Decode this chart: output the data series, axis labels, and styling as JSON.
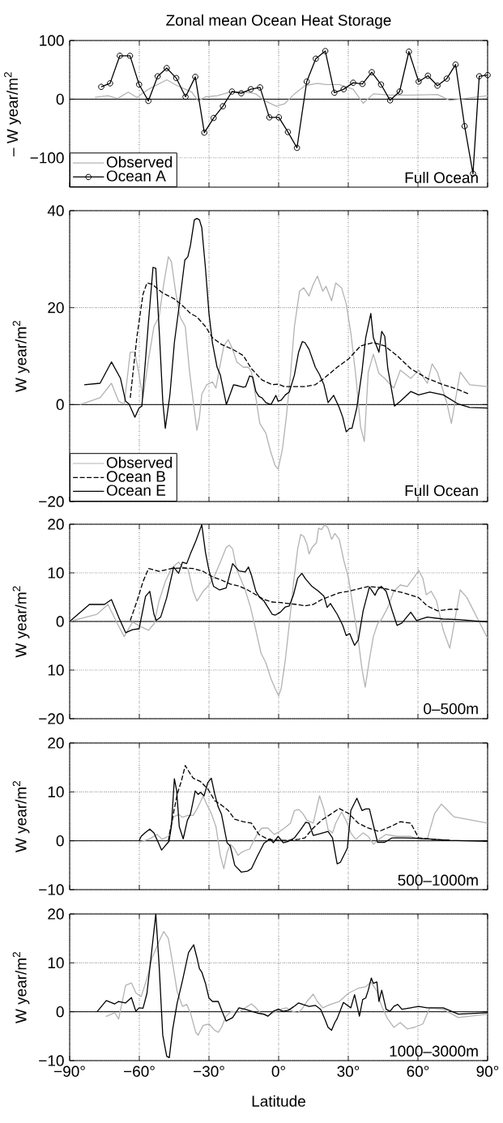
{
  "chart_data": [
    {
      "type": "line",
      "title": "Zonal  mean Ocean Heat Storage",
      "ylabel": "– W year/m$^{2}$",
      "xlim": [
        -90,
        90
      ],
      "ylim": [
        -150,
        100
      ],
      "xticks": [
        {
          "value": -90,
          "label": null
        },
        {
          "value": -60,
          "label": null
        },
        {
          "value": -30,
          "label": null
        },
        {
          "value": 0,
          "label": null
        },
        {
          "value": 30,
          "label": null
        },
        {
          "value": 60,
          "label": null
        },
        {
          "value": 90,
          "label": null
        }
      ],
      "yticks": [
        {
          "value": -100,
          "label": "−100"
        },
        0,
        100
      ],
      "tick_labels": "y",
      "grid": true,
      "legend": "bottom left",
      "ref_lines": [
        {
          "axis": "y",
          "value": 0,
          "color": "#000000"
        }
      ],
      "annotations": [
        "Full Ocean"
      ],
      "series": [
        {
          "name": "Observed",
          "color": "#b3b3b3",
          "x": [
            -79.1,
            -73.5,
            -69.4,
            -64.8,
            -61.0,
            -56.0,
            -48.2,
            -43.7,
            -40.2,
            -37.4,
            -34.7,
            -31.5,
            -26.5,
            -20.8,
            -15.2,
            -9.8,
            -6.3,
            -1.0,
            2.5,
            6.8,
            11.3,
            16.7,
            20.4,
            26.1,
            32.1,
            36.4,
            40.8,
            48.2,
            56.9,
            68.4,
            73.7,
            90
          ],
          "values": [
            3,
            6,
            1,
            12,
            3,
            17,
            33,
            23,
            17,
            12,
            -3,
            4,
            6,
            12,
            13,
            9,
            -2,
            -12,
            -8,
            9,
            23,
            27,
            25,
            25,
            17,
            -7,
            9,
            7,
            7,
            8,
            -2,
            6
          ]
        },
        {
          "name": "Ocean A",
          "color": "#000000",
          "marker": "circle",
          "x": [
            -76.4,
            -72.6,
            -68.4,
            -64.0,
            -60.1,
            -56.1,
            -52.1,
            -48.2,
            -44.1,
            -40.1,
            -35.9,
            -32.0,
            -28.0,
            -24.0,
            -20.1,
            -16.1,
            -12.0,
            -8.0,
            -4.0,
            0.1,
            4.0,
            7.9,
            12.1,
            16.0,
            20.1,
            24.0,
            28.0,
            32.1,
            36.1,
            40.1,
            44.1,
            48.0,
            52.1,
            56.1,
            60.3,
            64.3,
            68.4,
            72.4,
            76.2,
            80.1,
            83.7,
            86.4,
            90
          ],
          "values": [
            21,
            27,
            74,
            74,
            25,
            -3,
            39,
            53,
            36,
            4,
            38,
            -57,
            -32,
            -12,
            13,
            10,
            17,
            20,
            -31,
            -31,
            -56,
            -83,
            30,
            69,
            82,
            11,
            17,
            28,
            26,
            46,
            25,
            -2,
            13,
            81,
            30,
            40,
            23,
            35,
            59,
            -46,
            -127,
            39,
            41
          ]
        }
      ]
    },
    {
      "type": "line",
      "ylabel": "W year/m$^{2}$",
      "xlim": [
        -90,
        90
      ],
      "ylim": [
        -20,
        40
      ],
      "xticks": [
        {
          "value": -90,
          "label": null
        },
        {
          "value": -60,
          "label": null
        },
        {
          "value": -30,
          "label": null
        },
        {
          "value": 0,
          "label": null
        },
        {
          "value": 30,
          "label": null
        },
        {
          "value": 60,
          "label": null
        },
        {
          "value": 90,
          "label": null
        }
      ],
      "yticks": [
        {
          "value": -20,
          "label": "−20"
        },
        0,
        20,
        40
      ],
      "tick_labels": "y",
      "grid": true,
      "legend": "bottom left",
      "ref_lines": [
        {
          "axis": "y",
          "value": 0,
          "color": "#000000"
        }
      ],
      "annotations": [
        "Full Ocean"
      ],
      "series": [
        {
          "name": "Observed",
          "color": "#b3b3b3",
          "x": [
            -85.6,
            -76.9,
            -72.0,
            -68.9,
            -66.5,
            -63.9,
            -61.9,
            -60.1,
            -58.4,
            -56.0,
            -53.7,
            -51.5,
            -49.5,
            -47.5,
            -46.2,
            -44.4,
            -42.5,
            -40.2,
            -38.5,
            -36.8,
            -35.2,
            -34.1,
            -33.1,
            -31.0,
            -28.5,
            -27.0,
            -25.5,
            -23.6,
            -21.7,
            -19.8,
            -18.0,
            -15.2,
            -13.0,
            -11.7,
            -9.8,
            -8.1,
            -5.5,
            -3.7,
            -1.5,
            -0.2,
            1.6,
            3.3,
            5.1,
            6.8,
            9.0,
            10.8,
            13.1,
            14.9,
            16.7,
            19.0,
            20.4,
            22.8,
            24.6,
            27.1,
            29.1,
            31.1,
            33.2,
            35.3,
            36.9,
            38.6,
            40.8,
            43.2,
            45.7,
            49.6,
            52.4,
            56.9,
            60.3,
            64.0,
            66.1,
            68.4,
            72.4,
            74.4,
            78.2,
            82.3,
            90
          ],
          "values": [
            0,
            1.4,
            4.4,
            0.7,
            0.1,
            10.8,
            10.8,
            6.1,
            1.4,
            9.4,
            16.1,
            18.1,
            24.8,
            30.5,
            29.5,
            23.4,
            18.1,
            16.1,
            7.4,
            0.7,
            -5.3,
            -2.6,
            2.1,
            4.1,
            4.7,
            3.4,
            7.4,
            12.1,
            13.4,
            11.4,
            8.8,
            7.7,
            7.7,
            6.7,
            1.4,
            -3.9,
            -5.9,
            -9.3,
            -12.6,
            -13.3,
            -9.3,
            -2.6,
            6.1,
            16.1,
            23.4,
            24.1,
            22.4,
            24.8,
            26.5,
            23.4,
            24.4,
            21.4,
            25.1,
            24.1,
            20.8,
            14.8,
            6.1,
            -4.6,
            -7.6,
            6.7,
            10.4,
            6.4,
            5.4,
            3.4,
            7.1,
            5.4,
            7.1,
            4.4,
            8.4,
            6.7,
            0.4,
            -3.9,
            6.7,
            4.1,
            3.7
          ]
        },
        {
          "name": "Ocean B",
          "color": "#000000",
          "line_style": "dashed",
          "x": [
            -63.9,
            -61.0,
            -58.4,
            -56.7,
            -54.4,
            -50.2,
            -44.9,
            -41.4,
            -38.0,
            -35.2,
            -31.5,
            -28.5,
            -24.6,
            -19.8,
            -15.2,
            -11.7,
            -7.2,
            -2.8,
            -0.2,
            2.5,
            6.8,
            11.3,
            15.8,
            19.5,
            25.2,
            30.1,
            35.3,
            40.8,
            45.7,
            51.0,
            56.9,
            64.0,
            70.9,
            77.4,
            82.3
          ],
          "values": [
            1.4,
            14.1,
            22.8,
            25.1,
            24.8,
            23.1,
            21.8,
            20.4,
            18.8,
            18.1,
            16.1,
            13.8,
            12.4,
            11.4,
            10.1,
            7.4,
            5.1,
            4.1,
            4.2,
            3.7,
            3.7,
            3.7,
            4.1,
            5.4,
            7.7,
            9.4,
            12.1,
            12.8,
            12.1,
            10.1,
            7.4,
            5.4,
            4.1,
            3.1,
            2.1
          ]
        },
        {
          "name": "Ocean E",
          "color": "#000000",
          "x": [
            -83.7,
            -76.9,
            -72.0,
            -68.1,
            -65.9,
            -64.4,
            -61.9,
            -60.1,
            -58.9,
            -56.0,
            -54.1,
            -52.9,
            -51.3,
            -49.9,
            -48.8,
            -46.8,
            -44.9,
            -43.1,
            -40.4,
            -39.1,
            -38.0,
            -36.3,
            -35.2,
            -34.1,
            -33.1,
            -31.5,
            -30,
            -28.5,
            -26.5,
            -25.1,
            -22.5,
            -19.4,
            -17.5,
            -15.2,
            -14.2,
            -12.5,
            -11.2,
            -9.8,
            -8.5,
            -7.2,
            -5.5,
            -3.3,
            -1.2,
            -0.2,
            1.1,
            2.9,
            4.6,
            6.8,
            8.6,
            10.2,
            11.3,
            13.1,
            15.8,
            17.6,
            19.5,
            21.3,
            23.7,
            26.1,
            27.6,
            29.1,
            30.6,
            31.6,
            33.7,
            35.9,
            37.5,
            39.7,
            40.8,
            43.2,
            44.4,
            45.7,
            47.0,
            49.9,
            52.4,
            56.9,
            60.3,
            65.1,
            70.9,
            77.4,
            82.3,
            90
          ],
          "values": [
            4.1,
            4.4,
            8.8,
            5.4,
            0.7,
            0.1,
            -2.6,
            -0.7,
            -0.3,
            17.4,
            28.3,
            28.1,
            14.1,
            0.7,
            -4.9,
            2.1,
            12.8,
            19.4,
            29.8,
            30.5,
            32.8,
            38.1,
            38.4,
            38.1,
            36.5,
            28.1,
            18.8,
            12.7,
            7.7,
            6.1,
            0,
            4.1,
            3.9,
            3.6,
            3.7,
            5.9,
            5.7,
            2.7,
            1.7,
            1.4,
            0.4,
            0,
            1.9,
            0.7,
            0.9,
            2.0,
            2.6,
            6.1,
            10.8,
            13.0,
            12.8,
            11.4,
            7.7,
            6.2,
            4.1,
            0.4,
            1.9,
            -0.6,
            -2.6,
            -5.6,
            -4.9,
            -4.9,
            -0.6,
            6.8,
            13.8,
            18.8,
            13.8,
            10.8,
            15.1,
            14.1,
            7.5,
            -0.3,
            0.7,
            2.7,
            2.0,
            2.6,
            2.0,
            0.1,
            -0.6,
            -0.7
          ]
        }
      ]
    },
    {
      "type": "line",
      "ylabel": "W year/m$^{2}$",
      "xlim": [
        -90,
        90
      ],
      "ylim": [
        -20,
        20
      ],
      "xticks": [
        {
          "value": -90,
          "label": null
        },
        {
          "value": -60,
          "label": null
        },
        {
          "value": -30,
          "label": null
        },
        {
          "value": 0,
          "label": null
        },
        {
          "value": 30,
          "label": null
        },
        {
          "value": 60,
          "label": null
        },
        {
          "value": 90,
          "label": null
        }
      ],
      "yticks": [
        {
          "value": -20,
          "label": "−20"
        },
        {
          "value": -10,
          "label": "10"
        },
        0,
        10,
        20
      ],
      "tick_labels": "y",
      "grid": true,
      "ref_lines": [
        {
          "axis": "y",
          "value": 0,
          "color": "#000000"
        }
      ],
      "annotations": [
        "0–500m"
      ],
      "series": [
        {
          "color": "#b3b3b3",
          "x": [
            -90,
            -78.2,
            -73.5,
            -69.4,
            -66.5,
            -62.9,
            -59.2,
            -56.0,
            -53.7,
            -51.5,
            -48.8,
            -46.2,
            -43.1,
            -41.4,
            -39.1,
            -36.8,
            -35.2,
            -32.5,
            -30,
            -27.5,
            -25.1,
            -22.6,
            -21.2,
            -19.8,
            -18.0,
            -16.1,
            -14.4,
            -12.1,
            -9.8,
            -7.6,
            -5.5,
            -3.3,
            -1.5,
            0,
            1.1,
            2.9,
            4.6,
            6.4,
            8.2,
            9.5,
            10.8,
            12.2,
            13.1,
            14.4,
            16.3,
            17.2,
            18.5,
            19.9,
            21.3,
            22.8,
            24.2,
            26.1,
            28.1,
            30.1,
            32.1,
            34.3,
            35.9,
            37.3,
            39.1,
            40.8,
            42.6,
            44.4,
            47.0,
            49.6,
            52.4,
            55.4,
            58.5,
            60.3,
            62.1,
            63.6,
            65.7,
            68.0,
            70.9,
            73.7,
            78.2,
            81.1,
            90
          ],
          "values": [
            0,
            1.5,
            3.5,
            -0.5,
            -3.1,
            -0.1,
            -1.1,
            -1.8,
            -0.5,
            4.2,
            8.2,
            10.9,
            12.2,
            11.2,
            10.9,
            6.2,
            4.2,
            6.2,
            7.5,
            9.5,
            12.2,
            15.2,
            15.7,
            14.9,
            10.6,
            8.5,
            6.5,
            2.9,
            -1.8,
            -6.5,
            -8.5,
            -11.8,
            -13.8,
            -15.3,
            -13.8,
            -7.8,
            -0.5,
            7.9,
            14.9,
            17.9,
            17.5,
            15.9,
            13.9,
            15.2,
            16.2,
            19.2,
            18.9,
            19.9,
            19.2,
            16.9,
            18.1,
            16.9,
            12.5,
            8.9,
            2.9,
            -3.8,
            -9.8,
            -13.5,
            -7.8,
            -3.1,
            -0.5,
            0.5,
            2.9,
            6.2,
            7.5,
            7.2,
            9.2,
            10.5,
            8.9,
            5.5,
            6.2,
            4.2,
            -1.8,
            -5.5,
            6.5,
            4.9,
            -3.5
          ]
        },
        {
          "color": "#000000",
          "line_style": "dashed",
          "x": [
            -63.9,
            -61.0,
            -58.4,
            -56.0,
            -51.5,
            -46.2,
            -41.4,
            -36.8,
            -32.5,
            -28.5,
            -24.6,
            -20.8,
            -17.1,
            -13.4,
            -9.8,
            -6.3,
            -2.8,
            0.7,
            4.2,
            7.8,
            11.3,
            14.9,
            18.5,
            22.3,
            26.1,
            30.1,
            34.3,
            38.6,
            43.2,
            48.2,
            53.8,
            60.3,
            64.0,
            68.4,
            73.7,
            77.4
          ],
          "values": [
            0.2,
            4.2,
            8.2,
            10.9,
            10.3,
            10.9,
            11.0,
            10.9,
            10.3,
            9.2,
            8.5,
            7.7,
            7.3,
            6.5,
            5.5,
            4.5,
            4.0,
            3.9,
            3.7,
            3.5,
            3.2,
            3.5,
            4.5,
            5.2,
            5.9,
            6.2,
            6.7,
            7.2,
            7.0,
            6.5,
            5.9,
            4.9,
            3.2,
            2.2,
            2.5,
            2.5
          ]
        },
        {
          "color": "#000000",
          "x": [
            -90,
            -81.5,
            -75.0,
            -72.0,
            -68.9,
            -65.9,
            -62.9,
            -60.1,
            -57.3,
            -55.5,
            -53.7,
            -52.7,
            -50.8,
            -48.2,
            -45.2,
            -43.1,
            -41.4,
            -39.6,
            -38.0,
            -35.7,
            -33.1,
            -31.5,
            -30,
            -28.0,
            -25.5,
            -22.6,
            -19.8,
            -17.1,
            -14.4,
            -13.0,
            -11.7,
            -9.8,
            -8.1,
            -6.3,
            -4.6,
            -2.8,
            -1.5,
            0.7,
            2.9,
            4.6,
            6.4,
            8.2,
            10.0,
            11.7,
            14.4,
            17.2,
            19.5,
            20.9,
            22.3,
            25.2,
            27.6,
            29.1,
            30.6,
            32.7,
            34.3,
            36.4,
            39.1,
            41.5,
            42.6,
            44.2,
            46.3,
            48.9,
            51.0,
            53.1,
            56.9,
            59.4,
            64.0,
            70.9,
            77.4,
            90
          ],
          "values": [
            0,
            3.5,
            3.5,
            4.5,
            0.9,
            -2.3,
            -1.7,
            -1.5,
            5.2,
            6.2,
            1.5,
            0.2,
            0.9,
            4.9,
            11.2,
            9.9,
            12.2,
            11.9,
            13.9,
            16.5,
            19.9,
            14.2,
            10.5,
            7.2,
            6.5,
            6.9,
            11.9,
            10.4,
            10.2,
            11.2,
            9.5,
            6.2,
            4.9,
            4.2,
            2.9,
            1.5,
            1.3,
            1.9,
            3.0,
            3.2,
            5.5,
            8.9,
            9.9,
            8.7,
            7.2,
            6.2,
            5.2,
            2.9,
            3.7,
            1.5,
            -0.8,
            -2.9,
            -2.5,
            -4.9,
            -3.8,
            2.2,
            7.1,
            5.4,
            6.5,
            7.2,
            6.2,
            2.2,
            -0.8,
            -0.3,
            1.9,
            0.2,
            0.9,
            0.5,
            0.4,
            -0.1
          ]
        }
      ]
    },
    {
      "type": "line",
      "ylabel": "W year/m$^{2}$",
      "xlim": [
        -90,
        90
      ],
      "ylim": [
        -10,
        20
      ],
      "xticks": [
        {
          "value": -90,
          "label": null
        },
        {
          "value": -60,
          "label": null
        },
        {
          "value": -30,
          "label": null
        },
        {
          "value": 0,
          "label": null
        },
        {
          "value": 30,
          "label": null
        },
        {
          "value": 60,
          "label": null
        },
        {
          "value": 90,
          "label": null
        }
      ],
      "yticks": [
        {
          "value": -10,
          "label": "−10"
        },
        0,
        10,
        20
      ],
      "tick_labels": "y",
      "grid": true,
      "ref_lines": [
        {
          "axis": "y",
          "value": 0,
          "color": "#000000"
        }
      ],
      "annotations": [
        "500–1000m"
      ],
      "series": [
        {
          "color": "#b3b3b3",
          "x": [
            -60.1,
            -56.0,
            -52.3,
            -50.2,
            -47.5,
            -45.2,
            -43.1,
            -41.4,
            -39.1,
            -36.8,
            -34.7,
            -32.5,
            -31.0,
            -29.0,
            -27.0,
            -25.1,
            -23.6,
            -22.2,
            -20.8,
            -18.9,
            -17.5,
            -16.1,
            -14.4,
            -12.5,
            -10.8,
            -9.0,
            -7.2,
            -4.6,
            -1.9,
            -0.2,
            2.5,
            5.1,
            6.8,
            8.6,
            10.4,
            12.2,
            14.9,
            17.6,
            19.5,
            21.3,
            23.2,
            24.6,
            27.1,
            29.1,
            31.1,
            33.2,
            36.4,
            38.6,
            40.8,
            43.2,
            46.3,
            51.0,
            56.9,
            60.3,
            64.0,
            67.2,
            70.1,
            75.5,
            90
          ],
          "values": [
            -0.3,
            0.3,
            1.3,
            0.3,
            0.9,
            4.9,
            5.4,
            4.8,
            5.2,
            5.2,
            6.9,
            9.2,
            7.5,
            5.6,
            2.9,
            -3.0,
            -5.7,
            -2.4,
            -0.7,
            -1.7,
            -3.0,
            -2.4,
            -2.0,
            -1.7,
            -0.1,
            1.6,
            2.6,
            2.6,
            1.3,
            1.7,
            2.6,
            3.6,
            6.2,
            6.4,
            5.6,
            4.2,
            3.6,
            9.2,
            6.5,
            2.3,
            1.6,
            3.6,
            5.9,
            4.1,
            1.6,
            0.3,
            1.6,
            0.9,
            -0.7,
            0.3,
            1.3,
            0.9,
            0.9,
            0.3,
            0.3,
            5.6,
            7.5,
            4.9,
            3.6
          ]
        },
        {
          "color": "#000000",
          "line_style": "dashed",
          "x": [
            -47.5,
            -45.6,
            -43.7,
            -41.9,
            -40.2,
            -39.1,
            -36.8,
            -33.6,
            -30.5,
            -27.5,
            -24.6,
            -21.7,
            -18.9,
            -15.2,
            -11.7,
            -8.5,
            -4.6,
            -0.2,
            4.2,
            8.6,
            11.3,
            14.9,
            18.5,
            22.3,
            26.1,
            30.1,
            34.3,
            38.6,
            43.2,
            48.2,
            52.4,
            56.9,
            60.3,
            66.1,
            73.7
          ],
          "values": [
            0,
            4.9,
            9.5,
            12.2,
            15.4,
            14.5,
            12.8,
            12.1,
            10.6,
            8.2,
            7.3,
            6.2,
            4.4,
            3.9,
            3.6,
            1.3,
            0.3,
            0.1,
            0.1,
            0.3,
            0.6,
            2.6,
            4.2,
            5.4,
            6.6,
            5.6,
            3.6,
            2.6,
            1.9,
            2.9,
            3.9,
            3.6,
            0.6,
            0.3,
            0.1
          ]
        },
        {
          "color": "#000000",
          "x": [
            -60.1,
            -59.2,
            -57.6,
            -55.5,
            -53.7,
            -51.8,
            -50.4,
            -49.0,
            -47.2,
            -46.2,
            -44.9,
            -43.9,
            -42.8,
            -41.1,
            -39.3,
            -38.0,
            -35.9,
            -34.7,
            -33.6,
            -32.1,
            -30.5,
            -29.0,
            -27.5,
            -26.0,
            -24.6,
            -22.2,
            -20.8,
            -18.9,
            -16.1,
            -13.4,
            -11.7,
            -9.0,
            -6.3,
            -3.7,
            -2.3,
            -0.2,
            2.0,
            4.2,
            6.8,
            9.5,
            11.7,
            13.1,
            14.9,
            17.6,
            21.3,
            23.2,
            25.2,
            26.6,
            29.6,
            31.1,
            33.7,
            35.9,
            37.5,
            39.1,
            42.6,
            45.7,
            48.9,
            53.8,
            60.3,
            73.7,
            90
          ],
          "values": [
            0,
            0.9,
            1.6,
            2.4,
            1.6,
            -0.4,
            -1.9,
            -1.1,
            -0.1,
            2.9,
            12.7,
            10.2,
            2.9,
            0.4,
            4.2,
            5.4,
            10.2,
            9.5,
            9.9,
            9.2,
            11.9,
            12.8,
            9.5,
            6.9,
            5.4,
            -0.4,
            -1.1,
            -5.0,
            -6.4,
            -6.2,
            -5.7,
            -3.0,
            -0.5,
            0.4,
            -0.4,
            0.9,
            -0.4,
            -0.1,
            0.6,
            2.3,
            3.8,
            3.6,
            1.1,
            1.4,
            1.9,
            0.6,
            -4.7,
            -4.4,
            -1.5,
            6.2,
            8.7,
            6.2,
            6.5,
            6.5,
            -0.3,
            -0.3,
            0.6,
            0.6,
            0.5,
            0.1,
            -0.1
          ]
        }
      ]
    },
    {
      "type": "line",
      "ylabel": "W year/m$^{2}$",
      "xlabel": "Latitude",
      "xlim": [
        -90,
        90
      ],
      "ylim": [
        -10,
        20
      ],
      "xticks": [
        {
          "value": -90,
          "label": "−90°"
        },
        {
          "value": -60,
          "label": "−60°"
        },
        {
          "value": -30,
          "label": "−30°"
        },
        {
          "value": 0,
          "label": "0°"
        },
        {
          "value": 30,
          "label": "30°"
        },
        {
          "value": 60,
          "label": "60°"
        },
        {
          "value": 90,
          "label": "90°"
        }
      ],
      "yticks": [
        {
          "value": -10,
          "label": "−10"
        },
        0,
        10,
        20
      ],
      "grid": true,
      "ref_lines": [
        {
          "axis": "y",
          "value": 0,
          "color": "#000000"
        }
      ],
      "annotations": [
        "1000–3000m"
      ],
      "series": [
        {
          "color": "#b3b3b3",
          "x": [
            -74.4,
            -70.6,
            -68.9,
            -65.9,
            -63.4,
            -61.4,
            -59.2,
            -56.7,
            -54.4,
            -51.5,
            -49.5,
            -47.5,
            -45.6,
            -43.7,
            -41.4,
            -39.6,
            -38.0,
            -35.7,
            -34.7,
            -32.5,
            -30,
            -27.5,
            -26.0,
            -24.6,
            -22.6,
            -20.3,
            -17.1,
            -14.4,
            -11.7,
            -9.8,
            -7.2,
            -4.6,
            -2.3,
            0.7,
            3.3,
            6.0,
            8.2,
            10.0,
            12.2,
            14.9,
            16.7,
            19.0,
            22.3,
            26.1,
            30.1,
            34.3,
            37.5,
            39.7,
            42.1,
            44.4,
            47.0,
            49.6,
            52.4,
            55.4,
            58.5,
            62.1,
            65.1,
            70.9,
            77.4,
            90
          ],
          "values": [
            -1.0,
            -0.2,
            -1.5,
            5.4,
            5.9,
            3.8,
            3.1,
            6.8,
            11.1,
            14.4,
            16.4,
            15.0,
            9.8,
            4.1,
            1.1,
            1.5,
            -0.2,
            -4.2,
            -4.8,
            -2.8,
            -2.5,
            -3.8,
            -4.2,
            -3.2,
            -0.9,
            0.1,
            -0.1,
            0.8,
            1.6,
            0.8,
            -0.5,
            -0.9,
            -0.2,
            0.5,
            0.8,
            0.1,
            -0.2,
            0.5,
            2.1,
            3.6,
            2.1,
            0.8,
            1.5,
            2.1,
            3.8,
            4.8,
            5.1,
            6.1,
            4.4,
            1.1,
            -1.5,
            -3.2,
            -2.2,
            -3.5,
            -3.2,
            -2.5,
            0.8,
            0.5,
            -1.2,
            -0.5
          ]
        },
        {
          "color": "#000000",
          "x": [
            -78.2,
            -74.2,
            -70.6,
            -68.9,
            -65.9,
            -63.4,
            -61.5,
            -60.1,
            -58.4,
            -56.7,
            -54.8,
            -52.9,
            -51.5,
            -49.9,
            -48.2,
            -47.1,
            -45.6,
            -43.7,
            -41.4,
            -38.8,
            -36.6,
            -35.2,
            -34.1,
            -33.1,
            -31.5,
            -30,
            -28.5,
            -26.0,
            -24.1,
            -22.6,
            -19.8,
            -17.1,
            -14.4,
            -11.7,
            -9.0,
            -6.3,
            -4.6,
            -2.3,
            -0.2,
            2.0,
            4.2,
            6.4,
            8.6,
            10.4,
            13.1,
            15.8,
            18.1,
            19.9,
            21.3,
            22.8,
            24.2,
            25.2,
            27.9,
            31.1,
            32.7,
            34.8,
            36.2,
            37.5,
            38.6,
            39.9,
            40.8,
            42.3,
            43.2,
            44.4,
            46.3,
            48.0,
            49.6,
            51.3,
            53.1,
            56.9,
            60.3,
            64.0,
            70.9,
            77.4,
            90
          ],
          "values": [
            0,
            2.3,
            1.6,
            2.1,
            1.8,
            2.9,
            0.1,
            0.8,
            0.7,
            3.8,
            11.8,
            20,
            9.7,
            -4.8,
            -9.1,
            -9.4,
            -3.5,
            1.8,
            6.4,
            12.1,
            13.7,
            11.1,
            8.8,
            8.1,
            5.8,
            2.8,
            2.1,
            2.1,
            -0.2,
            -1.9,
            -1.2,
            0.8,
            0.5,
            0.1,
            -0.3,
            -0.5,
            -0.9,
            0.1,
            0.5,
            0.1,
            0.3,
            1.0,
            1.8,
            1.5,
            1.1,
            1.3,
            0.5,
            -1.5,
            -3.2,
            -3.8,
            -2.2,
            -1.4,
            1.9,
            0.8,
            3.5,
            -0.9,
            2.5,
            2.8,
            4.4,
            6.9,
            5.8,
            6.1,
            2.1,
            4.4,
            0.5,
            0.1,
            1.1,
            1.5,
            0.5,
            0.8,
            1.1,
            0.8,
            0.8,
            -0.5,
            -0.2
          ]
        }
      ]
    }
  ]
}
